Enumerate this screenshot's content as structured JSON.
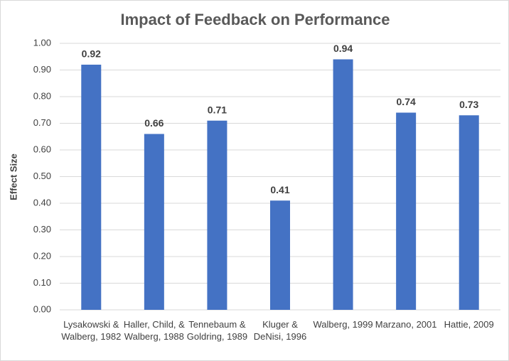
{
  "chart_data": {
    "type": "bar",
    "title": "Impact of Feedback on Performance",
    "y_label": "Effect Size",
    "categories": [
      "Lysakowski & Walberg, 1982",
      "Haller, Child, & Walberg, 1988",
      "Tennebaum & Goldring, 1989",
      "Kluger & DeNisi, 1996",
      "Walberg, 1999",
      "Marzano, 2001",
      "Hattie, 2009"
    ],
    "values": [
      0.92,
      0.66,
      0.71,
      0.41,
      0.94,
      0.74,
      0.73
    ],
    "color": "#4472c4",
    "ylim": [
      0,
      1
    ],
    "yticks": [
      {
        "value": 0,
        "label": "0.00"
      },
      {
        "value": 0.1,
        "label": "0.10"
      },
      {
        "value": 0.2,
        "label": "0.20"
      },
      {
        "value": 0.3,
        "label": "0.30"
      },
      {
        "value": 0.4,
        "label": "0.40"
      },
      {
        "value": 0.5,
        "label": "0.50"
      },
      {
        "value": 0.6,
        "label": "0.60"
      },
      {
        "value": 0.7,
        "label": "0.70"
      },
      {
        "value": 0.8,
        "label": "0.80"
      },
      {
        "value": 0.9,
        "label": "0.90"
      },
      {
        "value": 1,
        "label": "1.00"
      }
    ],
    "grid": true
  }
}
